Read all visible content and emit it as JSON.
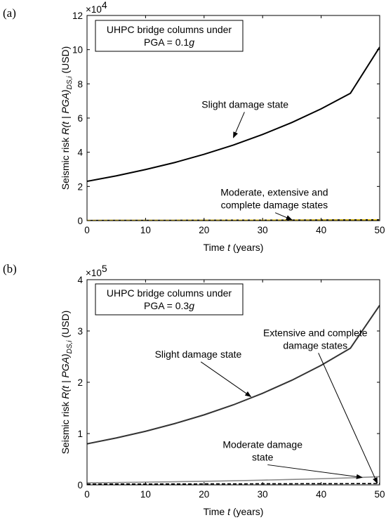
{
  "chart_data": [
    {
      "panel_label": "(a)",
      "type": "line",
      "xlabel_prefix": "Time ",
      "xlabel_var": "t",
      "xlabel_suffix": " (years)",
      "ylabel_prefix": "Seismic risk ",
      "ylabel_var": "R(t | PGA)",
      "ylabel_sub": "DS,i",
      "ylabel_suffix": " (USD)",
      "xlim": [
        0,
        50
      ],
      "ylim": [
        0,
        120000
      ],
      "xticks": [
        0,
        10,
        20,
        30,
        40,
        50
      ],
      "yticks": [
        0,
        20000,
        40000,
        60000,
        80000,
        100000,
        120000
      ],
      "ytick_labels": [
        "0",
        "2",
        "4",
        "6",
        "8",
        "10",
        "12"
      ],
      "y_multiplier": "×10",
      "y_multiplier_exp": "4",
      "grid": false,
      "box_line1": "UHPC bridge columns under",
      "box_line2_prefix": "PGA = 0.1",
      "box_line2_var": "g",
      "x": [
        0,
        5,
        10,
        15,
        20,
        25,
        30,
        35,
        40,
        45,
        50
      ],
      "series": [
        {
          "values": [
            23000,
            26200,
            29900,
            34000,
            38800,
            44200,
            50400,
            57400,
            65400,
            74500,
            101500
          ],
          "color": "#000000",
          "dash": "solid"
        },
        {
          "values": [
            150,
            170,
            190,
            210,
            240,
            270,
            300,
            340,
            380,
            430,
            500
          ],
          "color": "#000000",
          "dash": "solid"
        },
        {
          "values": [
            150,
            170,
            190,
            210,
            240,
            270,
            300,
            340,
            380,
            430,
            500
          ],
          "color": "#e8c200",
          "dash": "dashed"
        }
      ],
      "annotations": [
        {
          "lines": [
            "Slight damage state"
          ],
          "x": 27,
          "y": 66000,
          "arrow_to": [
            25,
            48500
          ]
        },
        {
          "lines": [
            "Moderate, extensive and",
            "complete damage states"
          ],
          "x": 32,
          "y": 14500,
          "arrow_to": [
            35,
            500
          ]
        }
      ]
    },
    {
      "panel_label": "(b)",
      "type": "line",
      "xlabel_prefix": "Time ",
      "xlabel_var": "t",
      "xlabel_suffix": " (years)",
      "ylabel_prefix": "Seismic risk ",
      "ylabel_var": "R(t | PGA)",
      "ylabel_sub": "DS,i",
      "ylabel_suffix": " (USD)",
      "xlim": [
        0,
        50
      ],
      "ylim": [
        0,
        400000
      ],
      "xticks": [
        0,
        10,
        20,
        30,
        40,
        50
      ],
      "yticks": [
        0,
        100000,
        200000,
        300000,
        400000
      ],
      "ytick_labels": [
        "0",
        "1",
        "2",
        "3",
        "4"
      ],
      "y_multiplier": "×10",
      "y_multiplier_exp": "5",
      "grid": false,
      "box_line1": "UHPC bridge columns under",
      "box_line2_prefix": "PGA = 0.3",
      "box_line2_var": "g",
      "x": [
        0,
        5,
        10,
        15,
        20,
        25,
        30,
        35,
        40,
        45,
        50
      ],
      "series": [
        {
          "values": [
            80000,
            91500,
            104500,
            119500,
            136500,
            156000,
            178500,
            204000,
            233000,
            266500,
            350000
          ],
          "color": "#333333",
          "dash": "solid"
        },
        {
          "values": [
            4000,
            4600,
            5300,
            6100,
            7000,
            8000,
            9200,
            10500,
            12000,
            13700,
            16000
          ],
          "color": "#888888",
          "dash": "solid"
        },
        {
          "values": [
            1500,
            1600,
            1700,
            1800,
            1900,
            2000,
            2100,
            2200,
            2300,
            2400,
            2600
          ],
          "color": "#000000",
          "dash": "dashed"
        }
      ],
      "annotations": [
        {
          "lines": [
            "Slight damage state"
          ],
          "x": 19,
          "y": 248000,
          "arrow_to": [
            28,
            172000
          ]
        },
        {
          "lines": [
            "Moderate damage",
            "state"
          ],
          "x": 30,
          "y": 72000,
          "arrow_to": [
            47,
            14500
          ]
        },
        {
          "lines": [
            "Extensive and complete",
            "damage states"
          ],
          "x": 39,
          "y": 290000,
          "arrow_to": [
            49.6,
            3000
          ]
        }
      ]
    }
  ]
}
